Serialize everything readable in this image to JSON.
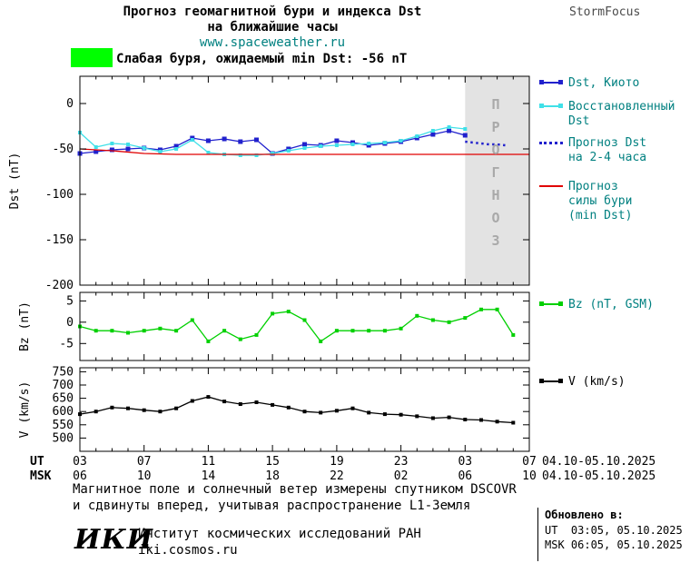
{
  "header": {
    "title_line1": "Прогноз геомагнитной бури и индекса Dst",
    "title_line2": "на ближайшие часы",
    "site": "www.spaceweather.ru",
    "brand": "StormFocus"
  },
  "alert": {
    "text": "Слабая буря, ожидаемый min Dst: -56 nT",
    "color": "#00ff00"
  },
  "prognoz_label": "ПРОГНОЗ",
  "legend": {
    "dst_kyoto": "Dst, Киото",
    "restored_1": "Восстановленный",
    "restored_2": "Dst",
    "forecast_1": "Прогноз Dst",
    "forecast_2": "на 2-4 часа",
    "storm_1": "Прогноз",
    "storm_2": "силы бури",
    "storm_3": "(min Dst)",
    "bz": "Bz (nT, GSM)",
    "v": "V (km/s)"
  },
  "xaxis": {
    "ut_label": "UT",
    "msk_label": "MSK",
    "tick_hours": [
      3,
      7,
      11,
      15,
      19,
      23,
      27,
      31
    ],
    "ut_ticks": [
      "03",
      "07",
      "11",
      "15",
      "19",
      "23",
      "03",
      "07"
    ],
    "msk_ticks": [
      "06",
      "10",
      "14",
      "18",
      "22",
      "02",
      "06",
      "10"
    ],
    "ut_date": "04.10-05.10.2025",
    "msk_date": "04.10-05.10.2025"
  },
  "footer": {
    "note_line1": "Магнитное поле и солнечный ветер измерены спутником DSCOVR",
    "note_line2": "и сдвинуты вперед, учитывая распространение L1-Земля",
    "updated_label": "Обновлено в:",
    "updated_ut": "UT  03:05, 05.10.2025",
    "updated_msk": "MSK 06:05, 05.10.2025",
    "logo": "ИКИ",
    "institute": "Институт космических исследований РАН",
    "site": "iki.cosmos.ru"
  },
  "colors": {
    "blue": "#2121cd",
    "cyan": "#40e0e8",
    "red": "#e00000",
    "green": "#00d000",
    "black": "#000000",
    "alert_green": "#00ff00",
    "teal_text": "#008080",
    "forecast_bg": "#e3e3e3",
    "prognoz_text": "#a9a9a9"
  },
  "chart_data": [
    {
      "type": "line",
      "title": "Прогноз геомагнитной бури и индекса Dst на ближайшие часы",
      "ylabel": "Dst (nT)",
      "xlabel": "UT hours 04.10-05.10.2025",
      "ylim": [
        -200,
        30
      ],
      "yticks": [
        0,
        -50,
        -100,
        -150,
        -200
      ],
      "xlim": [
        3,
        31
      ],
      "grid": false,
      "legend_position": "right",
      "forecast_region_x": [
        27,
        31
      ],
      "series": [
        {
          "name": "Dst, Киото",
          "color": "#2121cd",
          "marker": "square",
          "marker_size": 5,
          "x": [
            3,
            4,
            5,
            6,
            7,
            8,
            9,
            10,
            11,
            12,
            13,
            14,
            15,
            16,
            17,
            18,
            19,
            20,
            21,
            22,
            23,
            24,
            25,
            26,
            27
          ],
          "values": [
            -55,
            -53,
            -51,
            -50,
            -49,
            -51,
            -47,
            -38,
            -41,
            -39,
            -42,
            -40,
            -55,
            -50,
            -45,
            -46,
            -41,
            -43,
            -46,
            -44,
            -42,
            -38,
            -34,
            -30,
            -35
          ]
        },
        {
          "name": "Восстановленный Dst",
          "color": "#40e0e8",
          "marker": "square",
          "marker_size": 4,
          "x": [
            3,
            4,
            5,
            6,
            7,
            8,
            9,
            10,
            11,
            12,
            13,
            14,
            15,
            16,
            17,
            18,
            19,
            20,
            21,
            22,
            23,
            24,
            25,
            26,
            27
          ],
          "values": [
            -32,
            -48,
            -44,
            -45,
            -49,
            -53,
            -50,
            -40,
            -54,
            -56,
            -57,
            -57,
            -55,
            -52,
            -49,
            -47,
            -46,
            -45,
            -44,
            -43,
            -41,
            -36,
            -30,
            -26,
            -28
          ]
        },
        {
          "name": "Прогноз Dst на 2-4 часа",
          "color": "#2121cd",
          "style": "dotted",
          "x": [
            27,
            27.5,
            28,
            28.5,
            29,
            29.5
          ],
          "values": [
            -42,
            -43,
            -44,
            -45,
            -45,
            -46
          ]
        },
        {
          "name": "Прогноз силы бури (min Dst)",
          "color": "#e00000",
          "x": [
            3,
            5,
            7,
            9,
            31
          ],
          "values": [
            -50,
            -52,
            -55,
            -56,
            -56
          ]
        }
      ]
    },
    {
      "type": "line",
      "ylabel": "Bz (nT)",
      "ylim": [
        -9,
        7
      ],
      "yticks": [
        5,
        0,
        -5
      ],
      "xlim": [
        3,
        31
      ],
      "grid": false,
      "series": [
        {
          "name": "Bz (nT, GSM)",
          "color": "#00d000",
          "marker": "square",
          "marker_size": 4,
          "x": [
            3,
            4,
            5,
            6,
            7,
            8,
            9,
            10,
            11,
            12,
            13,
            14,
            15,
            16,
            17,
            18,
            19,
            20,
            21,
            22,
            23,
            24,
            25,
            26,
            27,
            28,
            29,
            30
          ],
          "values": [
            -1,
            -2,
            -2,
            -2.5,
            -2,
            -1.5,
            -2,
            0.5,
            -4.5,
            -2,
            -4,
            -3,
            2,
            2.5,
            0.5,
            -4.5,
            -2,
            -2,
            -2,
            -2,
            -1.5,
            1.5,
            0.5,
            0,
            1,
            3,
            3,
            -3
          ]
        }
      ]
    },
    {
      "type": "line",
      "ylabel": "V (km/s)",
      "ylim": [
        450,
        765
      ],
      "yticks": [
        750,
        700,
        650,
        600,
        550,
        500
      ],
      "xlim": [
        3,
        31
      ],
      "grid": false,
      "series": [
        {
          "name": "V (km/s)",
          "color": "#000000",
          "marker": "square",
          "marker_size": 4,
          "x": [
            3,
            4,
            5,
            6,
            7,
            8,
            9,
            10,
            11,
            12,
            13,
            14,
            15,
            16,
            17,
            18,
            19,
            20,
            21,
            22,
            23,
            24,
            25,
            26,
            27,
            28,
            29,
            30
          ],
          "values": [
            590,
            600,
            615,
            612,
            605,
            600,
            612,
            640,
            655,
            638,
            628,
            635,
            625,
            615,
            600,
            596,
            603,
            612,
            596,
            590,
            588,
            582,
            575,
            578,
            570,
            568,
            562,
            558
          ]
        }
      ]
    }
  ]
}
